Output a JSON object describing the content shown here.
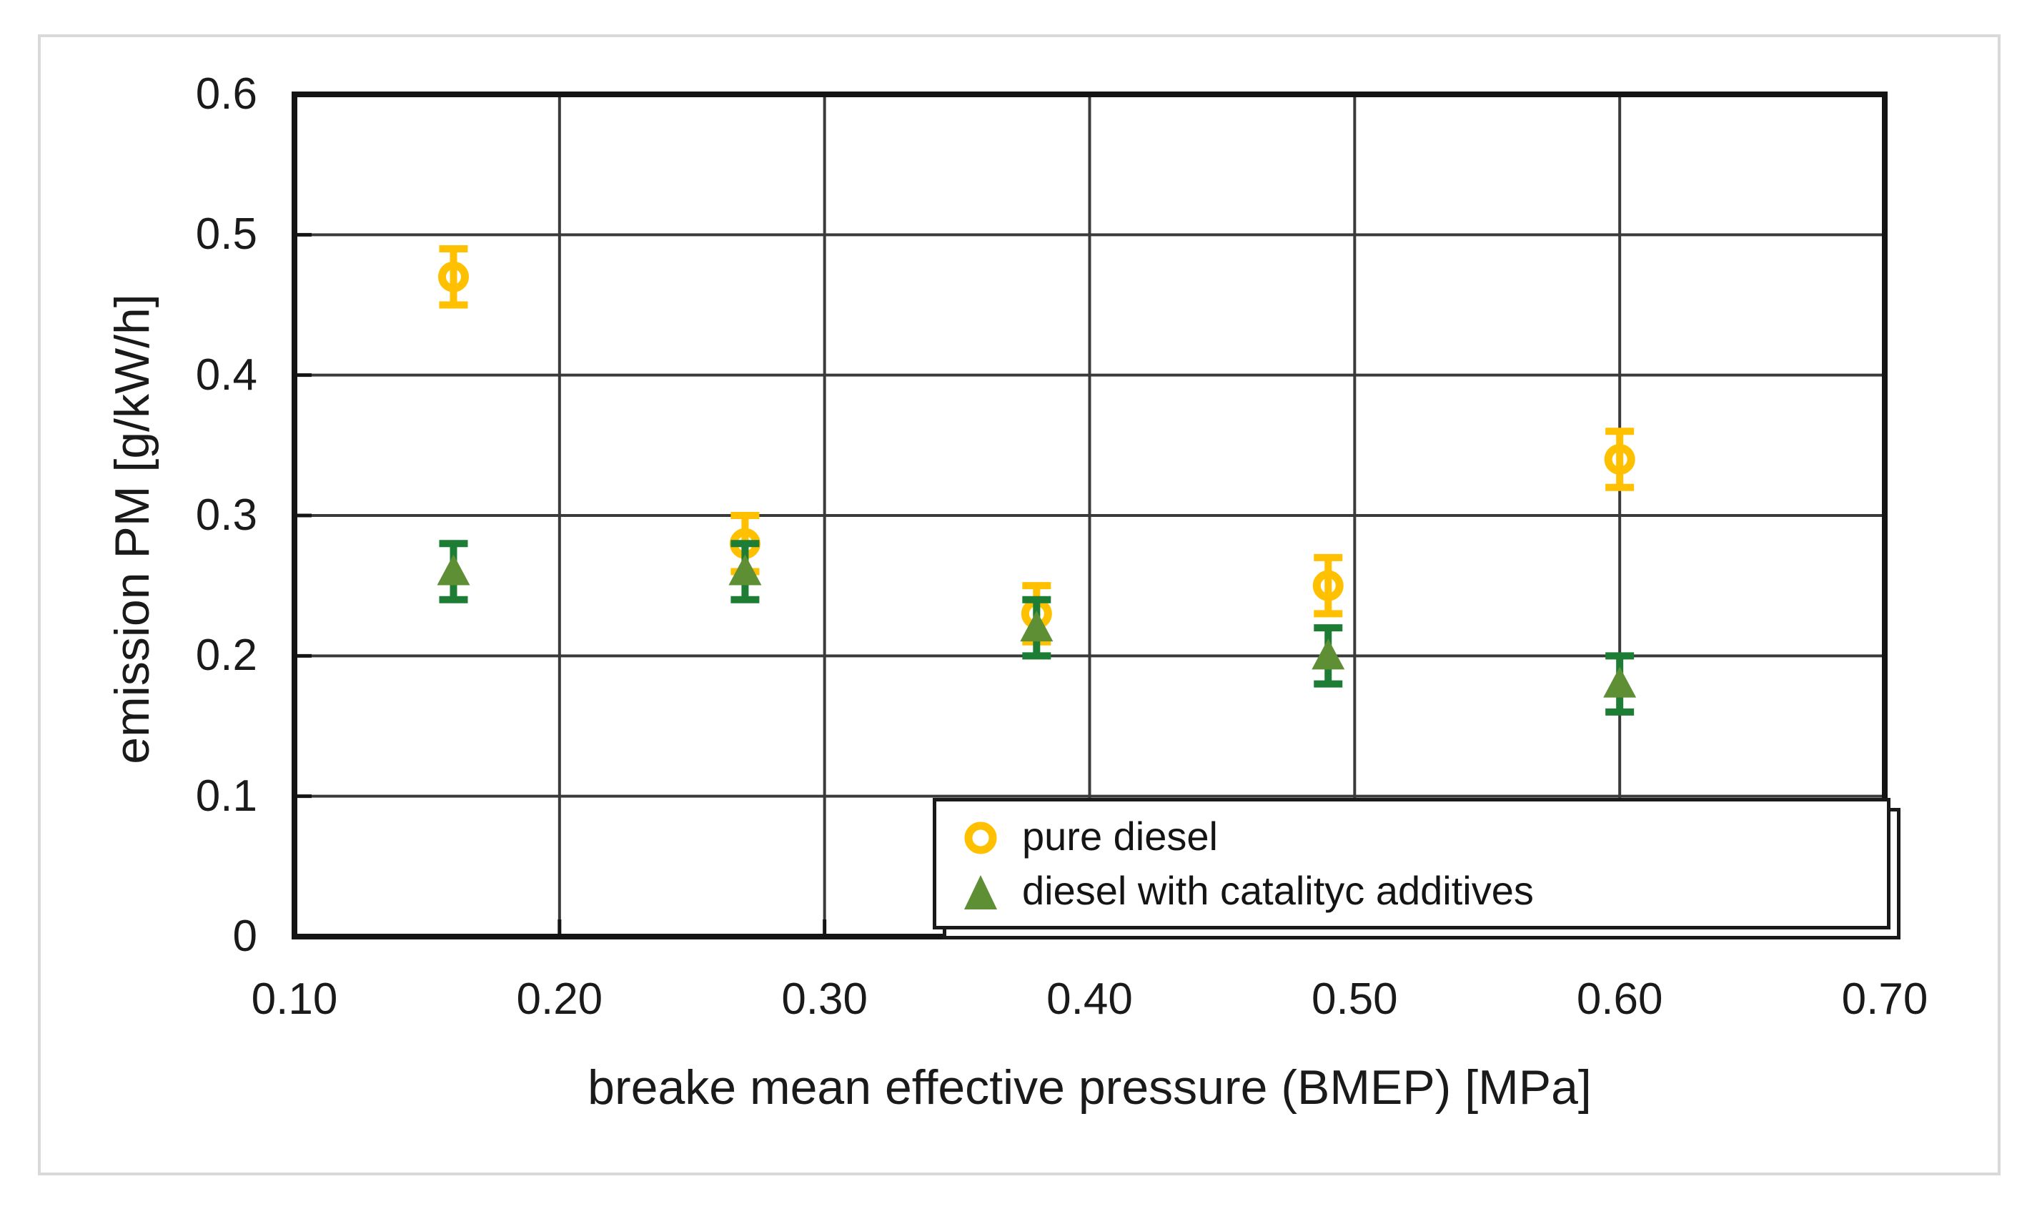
{
  "colors": {
    "grid": "#3a3a3a",
    "axis": "#141414",
    "text": "#1a1a1a",
    "figure_border": "#d9d9d9",
    "pure_diesel": "#FFC000",
    "additives_fill": "#5E8F34",
    "additives_error": "#1E7D34"
  },
  "chart_data": {
    "type": "scatter",
    "xlabel": "breake mean effective pressure (BMEP) [MPa]",
    "ylabel": "emission PM [g/kW/h]",
    "xlim": [
      0.1,
      0.7
    ],
    "ylim": [
      0,
      0.6
    ],
    "x_ticks": [
      "0.10",
      "0.20",
      "0.30",
      "0.40",
      "0.50",
      "0.60",
      "0.70"
    ],
    "y_ticks": [
      "0",
      "0.1",
      "0.2",
      "0.3",
      "0.4",
      "0.5",
      "0.6"
    ],
    "grid": true,
    "error_bars": true,
    "legend_position": "inside-bottom-right",
    "series": [
      {
        "name": "pure diesel",
        "marker": "open-circle",
        "color": "#FFC000",
        "error_color": "#FFC000",
        "points": [
          {
            "x": 0.16,
            "y": 0.47,
            "err": 0.02
          },
          {
            "x": 0.27,
            "y": 0.28,
            "err": 0.02
          },
          {
            "x": 0.38,
            "y": 0.23,
            "err": 0.02
          },
          {
            "x": 0.49,
            "y": 0.25,
            "err": 0.02
          },
          {
            "x": 0.6,
            "y": 0.34,
            "err": 0.02
          }
        ]
      },
      {
        "name": "diesel with catalityc additives",
        "marker": "filled-triangle",
        "color": "#5E8F34",
        "error_color": "#1E7D34",
        "points": [
          {
            "x": 0.16,
            "y": 0.26,
            "err": 0.02
          },
          {
            "x": 0.27,
            "y": 0.26,
            "err": 0.02
          },
          {
            "x": 0.38,
            "y": 0.22,
            "err": 0.02
          },
          {
            "x": 0.49,
            "y": 0.2,
            "err": 0.02
          },
          {
            "x": 0.6,
            "y": 0.18,
            "err": 0.02
          }
        ]
      }
    ]
  }
}
